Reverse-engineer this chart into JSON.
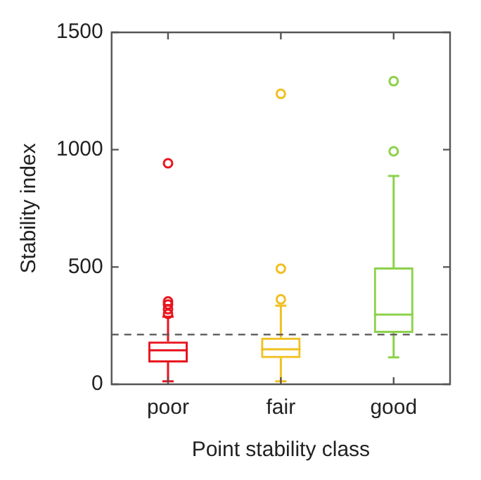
{
  "chart_data": {
    "type": "box",
    "xlabel": "Point stability class",
    "ylabel": "Stability index",
    "categories": [
      "poor",
      "fair",
      "good"
    ],
    "colors": [
      "#e8141e",
      "#f0c020",
      "#8cd24a"
    ],
    "boxes": [
      {
        "low": 13,
        "q1": 93,
        "median": 145,
        "q3": 182,
        "high": 288,
        "outliers": [
          300,
          320,
          340,
          353,
          942
        ]
      },
      {
        "low": 13,
        "q1": 112,
        "median": 149,
        "q3": 199,
        "high": 335,
        "outliers": [
          362,
          493,
          1238
        ]
      },
      {
        "low": 115,
        "q1": 219,
        "median": 297,
        "q3": 498,
        "high": 888,
        "outliers": [
          993,
          1292
        ]
      }
    ],
    "ylim": [
      0,
      1500
    ],
    "yticks": [
      0,
      500,
      1000,
      1500
    ],
    "grid": false,
    "ref_lines": [
      {
        "axis": "y",
        "value": 212,
        "color": "#555555",
        "line_style": "dashed"
      }
    ]
  }
}
